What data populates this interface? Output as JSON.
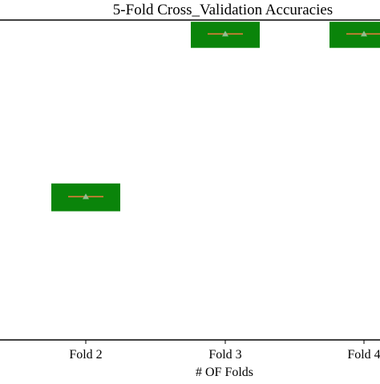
{
  "chart_data": {
    "type": "box",
    "title": "5-Fold Cross_Validation Accuracies",
    "xlabel": "# OF Folds",
    "ylabel": "",
    "categories": [
      "Fold 2",
      "Fold 3",
      "Fold 4"
    ],
    "boxes": [
      {
        "category": "Fold 2",
        "q1": 0.47,
        "median": 0.512,
        "mean": 0.512,
        "q3": 0.55
      },
      {
        "category": "Fold 3",
        "q1": 0.94,
        "median": 0.98,
        "mean": 0.98,
        "q3": 1.015
      },
      {
        "category": "Fold 4",
        "q1": 0.94,
        "median": 0.98,
        "mean": 0.98,
        "q3": 1.015
      }
    ],
    "ylim": [
      0.1,
      1.02
    ],
    "colors": {
      "box_fill": "#0a840a",
      "median_line": "#e07b39",
      "mean_marker": "#8fbf8f",
      "axes": "#000000"
    }
  }
}
